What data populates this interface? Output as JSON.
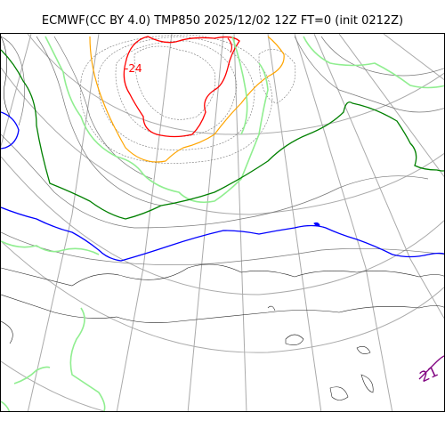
{
  "header": {
    "title": "ECMWF(CC BY 4.0) TMP850 2025/12/02 12Z FT=0 (init 0212Z)"
  },
  "map": {
    "contour_labels": [
      {
        "id": "label-minus-24",
        "text": "-24",
        "color": "#ff0000"
      },
      {
        "id": "label-21",
        "text": "21",
        "color": "#800080"
      }
    ],
    "colors": {
      "coastline": "#000000",
      "graticule": "#aaaaaa",
      "thin_isotherm": "#777777",
      "isotherm_minus_24": "#ff0000",
      "isotherm_minus_18": "#ffa500",
      "isotherm_minus_12": "#90ee90",
      "isotherm_minus_6": "#008000",
      "isotherm_0": "#0000ff",
      "isotherm_warm": "#800080"
    }
  }
}
